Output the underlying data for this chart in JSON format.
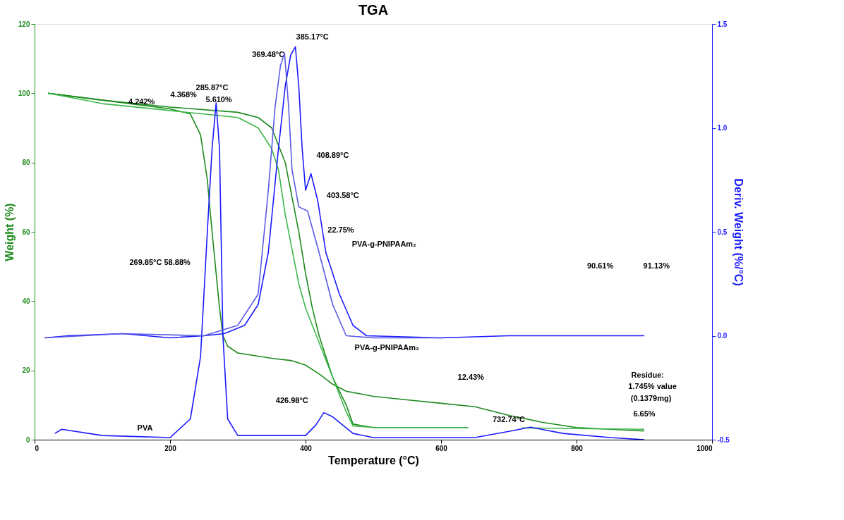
{
  "chart_data": {
    "type": "line",
    "title": "TGA",
    "xlabel": "Temperature (°C)",
    "ylabel": "Weight (%)",
    "y2label": "Deriv. Weight (%/°C)",
    "xlim": [
      0,
      1000
    ],
    "xticks": [
      0,
      200,
      400,
      600,
      800,
      {
        "value": 1000,
        "label": "1000"
      }
    ],
    "ylim": [
      0,
      120
    ],
    "yticks": [
      0,
      20,
      40,
      60,
      80,
      100,
      120
    ],
    "y2lim": [
      -0.5,
      1.5
    ],
    "y2ticks": [
      {
        "value": -0.5,
        "label": "-0.5"
      },
      {
        "value": 0,
        "label": "0.0"
      },
      {
        "value": 0.5,
        "label": "0.5"
      },
      {
        "value": 1,
        "label": "1.0"
      },
      {
        "value": 1.5,
        "label": "1.5"
      }
    ],
    "grid": false,
    "marker": "none",
    "line_style": "solid",
    "series": [
      {
        "color": "#1e8a1e",
        "x": [
          20,
          100,
          200,
          230,
          245,
          255,
          262,
          268,
          273,
          278,
          285,
          300,
          350,
          380,
          400,
          420,
          440,
          460,
          500,
          550,
          600,
          650,
          700,
          750,
          800,
          850,
          900
        ],
        "values": [
          100,
          98,
          95.5,
          94,
          88,
          75,
          60,
          48,
          38,
          30,
          27,
          25,
          23.5,
          22.8,
          21.5,
          19,
          16,
          14,
          12.5,
          11.5,
          10.5,
          9.5,
          7,
          5,
          3.5,
          3,
          2.5
        ]
      },
      {
        "color": "#1e8a1e",
        "x": [
          20,
          100,
          200,
          300,
          330,
          350,
          370,
          380,
          390,
          400,
          410,
          420,
          440,
          460,
          470,
          500,
          640
        ],
        "values": [
          100,
          98,
          96,
          94.5,
          93,
          90,
          80,
          70,
          60,
          48,
          38,
          30,
          18,
          10,
          4.5,
          3.5,
          3.5
        ]
      },
      {
        "color": "#3cb84a",
        "x": [
          20,
          100,
          200,
          300,
          330,
          350,
          360,
          370,
          380,
          390,
          400,
          420,
          440,
          460,
          470,
          500,
          640
        ],
        "values": [
          100,
          97,
          95,
          93,
          90,
          84,
          78,
          65,
          55,
          45,
          38,
          28,
          18,
          8,
          4,
          3.5,
          3.5
        ]
      },
      {
        "color": "#3cb84a",
        "x": [
          720,
          800,
          900
        ],
        "values": [
          3.4,
          3.2,
          3
        ]
      },
      {
        "axis": "y2",
        "color": "#1a1aff",
        "x": [
          30,
          40,
          100,
          200,
          230,
          245,
          255,
          262,
          268,
          273,
          278,
          285,
          300,
          400,
          415,
          427,
          440,
          470,
          500,
          650,
          700,
          732,
          780,
          850,
          900
        ],
        "values": [
          -0.47,
          -0.45,
          -0.48,
          -0.49,
          -0.4,
          -0.1,
          0.5,
          0.9,
          1.12,
          0.9,
          0.0,
          -0.4,
          -0.48,
          -0.48,
          -0.43,
          -0.37,
          -0.39,
          -0.47,
          -0.49,
          -0.49,
          -0.46,
          -0.44,
          -0.47,
          -0.49,
          -0.5
        ]
      },
      {
        "axis": "y2",
        "color": "#1a1aff",
        "x": [
          15,
          50,
          130,
          200,
          250,
          280,
          310,
          330,
          345,
          360,
          370,
          378,
          385,
          390,
          395,
          400,
          408,
          418,
          430,
          450,
          470,
          490,
          600,
          700,
          900
        ],
        "values": [
          -0.01,
          0.0,
          0.01,
          -0.01,
          0.0,
          0.01,
          0.05,
          0.15,
          0.4,
          0.9,
          1.2,
          1.35,
          1.39,
          1.2,
          0.9,
          0.7,
          0.78,
          0.65,
          0.4,
          0.2,
          0.05,
          0.0,
          -0.01,
          0.0,
          0.0
        ]
      },
      {
        "axis": "y2",
        "color": "#5a5ae6",
        "x": [
          15,
          130,
          250,
          300,
          330,
          345,
          355,
          363,
          369,
          375,
          380,
          390,
          403,
          420,
          440,
          460,
          500,
          600
        ],
        "values": [
          -0.01,
          0.01,
          0.0,
          0.05,
          0.2,
          0.7,
          1.1,
          1.3,
          1.36,
          1.1,
          0.8,
          0.62,
          0.6,
          0.4,
          0.15,
          0.0,
          -0.01,
          -0.01
        ]
      }
    ],
    "annotations": [
      "385.17°C",
      "369.48°C",
      "285.87°C",
      "4.242%",
      "4.368%",
      "5.610%",
      "408.89°C",
      "403.58°C",
      "22.75%",
      "269.85°C 58.88%",
      "PVA-g-PNIPAAm₂",
      "PVA-g-PNIPAAm₂",
      "12.43%",
      "426.98°C",
      "PVA",
      "732.74°C",
      "90.61%",
      "91.13%",
      "6.65%",
      "Residue:",
      "1.745% value",
      "(0.1379mg)"
    ]
  }
}
